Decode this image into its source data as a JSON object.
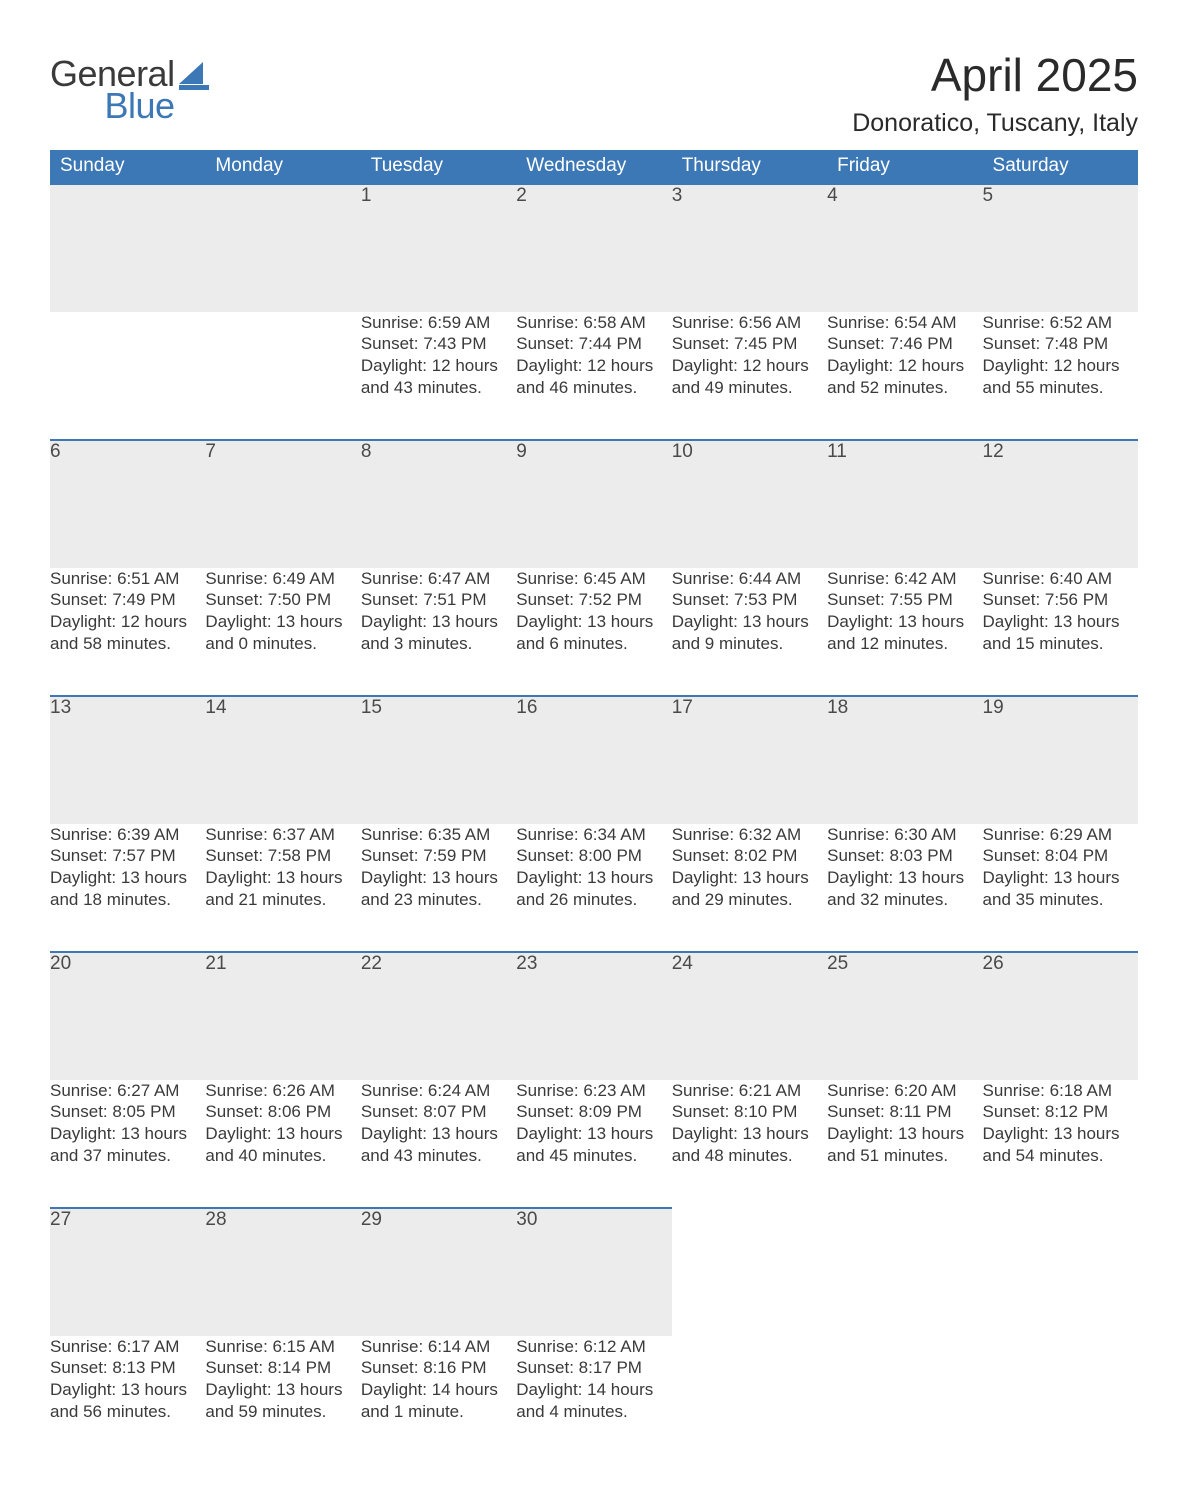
{
  "logo": {
    "word1": "General",
    "word2": "Blue",
    "color_general": "#3a3a3a",
    "color_blue": "#3d78b6"
  },
  "title": "April 2025",
  "location": "Donoratico, Tuscany, Italy",
  "header_bg": "#3d78b6",
  "header_fg": "#ffffff",
  "daynum_bg": "#ececec",
  "daynum_border": "#3d78b6",
  "text_color": "#3a3a3a",
  "days_of_week": [
    "Sunday",
    "Monday",
    "Tuesday",
    "Wednesday",
    "Thursday",
    "Friday",
    "Saturday"
  ],
  "weeks": [
    [
      null,
      null,
      {
        "n": "1",
        "sunrise": "6:59 AM",
        "sunset": "7:43 PM",
        "daylight": "12 hours and 43 minutes."
      },
      {
        "n": "2",
        "sunrise": "6:58 AM",
        "sunset": "7:44 PM",
        "daylight": "12 hours and 46 minutes."
      },
      {
        "n": "3",
        "sunrise": "6:56 AM",
        "sunset": "7:45 PM",
        "daylight": "12 hours and 49 minutes."
      },
      {
        "n": "4",
        "sunrise": "6:54 AM",
        "sunset": "7:46 PM",
        "daylight": "12 hours and 52 minutes."
      },
      {
        "n": "5",
        "sunrise": "6:52 AM",
        "sunset": "7:48 PM",
        "daylight": "12 hours and 55 minutes."
      }
    ],
    [
      {
        "n": "6",
        "sunrise": "6:51 AM",
        "sunset": "7:49 PM",
        "daylight": "12 hours and 58 minutes."
      },
      {
        "n": "7",
        "sunrise": "6:49 AM",
        "sunset": "7:50 PM",
        "daylight": "13 hours and 0 minutes."
      },
      {
        "n": "8",
        "sunrise": "6:47 AM",
        "sunset": "7:51 PM",
        "daylight": "13 hours and 3 minutes."
      },
      {
        "n": "9",
        "sunrise": "6:45 AM",
        "sunset": "7:52 PM",
        "daylight": "13 hours and 6 minutes."
      },
      {
        "n": "10",
        "sunrise": "6:44 AM",
        "sunset": "7:53 PM",
        "daylight": "13 hours and 9 minutes."
      },
      {
        "n": "11",
        "sunrise": "6:42 AM",
        "sunset": "7:55 PM",
        "daylight": "13 hours and 12 minutes."
      },
      {
        "n": "12",
        "sunrise": "6:40 AM",
        "sunset": "7:56 PM",
        "daylight": "13 hours and 15 minutes."
      }
    ],
    [
      {
        "n": "13",
        "sunrise": "6:39 AM",
        "sunset": "7:57 PM",
        "daylight": "13 hours and 18 minutes."
      },
      {
        "n": "14",
        "sunrise": "6:37 AM",
        "sunset": "7:58 PM",
        "daylight": "13 hours and 21 minutes."
      },
      {
        "n": "15",
        "sunrise": "6:35 AM",
        "sunset": "7:59 PM",
        "daylight": "13 hours and 23 minutes."
      },
      {
        "n": "16",
        "sunrise": "6:34 AM",
        "sunset": "8:00 PM",
        "daylight": "13 hours and 26 minutes."
      },
      {
        "n": "17",
        "sunrise": "6:32 AM",
        "sunset": "8:02 PM",
        "daylight": "13 hours and 29 minutes."
      },
      {
        "n": "18",
        "sunrise": "6:30 AM",
        "sunset": "8:03 PM",
        "daylight": "13 hours and 32 minutes."
      },
      {
        "n": "19",
        "sunrise": "6:29 AM",
        "sunset": "8:04 PM",
        "daylight": "13 hours and 35 minutes."
      }
    ],
    [
      {
        "n": "20",
        "sunrise": "6:27 AM",
        "sunset": "8:05 PM",
        "daylight": "13 hours and 37 minutes."
      },
      {
        "n": "21",
        "sunrise": "6:26 AM",
        "sunset": "8:06 PM",
        "daylight": "13 hours and 40 minutes."
      },
      {
        "n": "22",
        "sunrise": "6:24 AM",
        "sunset": "8:07 PM",
        "daylight": "13 hours and 43 minutes."
      },
      {
        "n": "23",
        "sunrise": "6:23 AM",
        "sunset": "8:09 PM",
        "daylight": "13 hours and 45 minutes."
      },
      {
        "n": "24",
        "sunrise": "6:21 AM",
        "sunset": "8:10 PM",
        "daylight": "13 hours and 48 minutes."
      },
      {
        "n": "25",
        "sunrise": "6:20 AM",
        "sunset": "8:11 PM",
        "daylight": "13 hours and 51 minutes."
      },
      {
        "n": "26",
        "sunrise": "6:18 AM",
        "sunset": "8:12 PM",
        "daylight": "13 hours and 54 minutes."
      }
    ],
    [
      {
        "n": "27",
        "sunrise": "6:17 AM",
        "sunset": "8:13 PM",
        "daylight": "13 hours and 56 minutes."
      },
      {
        "n": "28",
        "sunrise": "6:15 AM",
        "sunset": "8:14 PM",
        "daylight": "13 hours and 59 minutes."
      },
      {
        "n": "29",
        "sunrise": "6:14 AM",
        "sunset": "8:16 PM",
        "daylight": "14 hours and 1 minute."
      },
      {
        "n": "30",
        "sunrise": "6:12 AM",
        "sunset": "8:17 PM",
        "daylight": "14 hours and 4 minutes."
      },
      null,
      null,
      null
    ]
  ],
  "labels": {
    "sunrise_prefix": "Sunrise: ",
    "sunset_prefix": "Sunset: ",
    "daylight_prefix": "Daylight: "
  }
}
